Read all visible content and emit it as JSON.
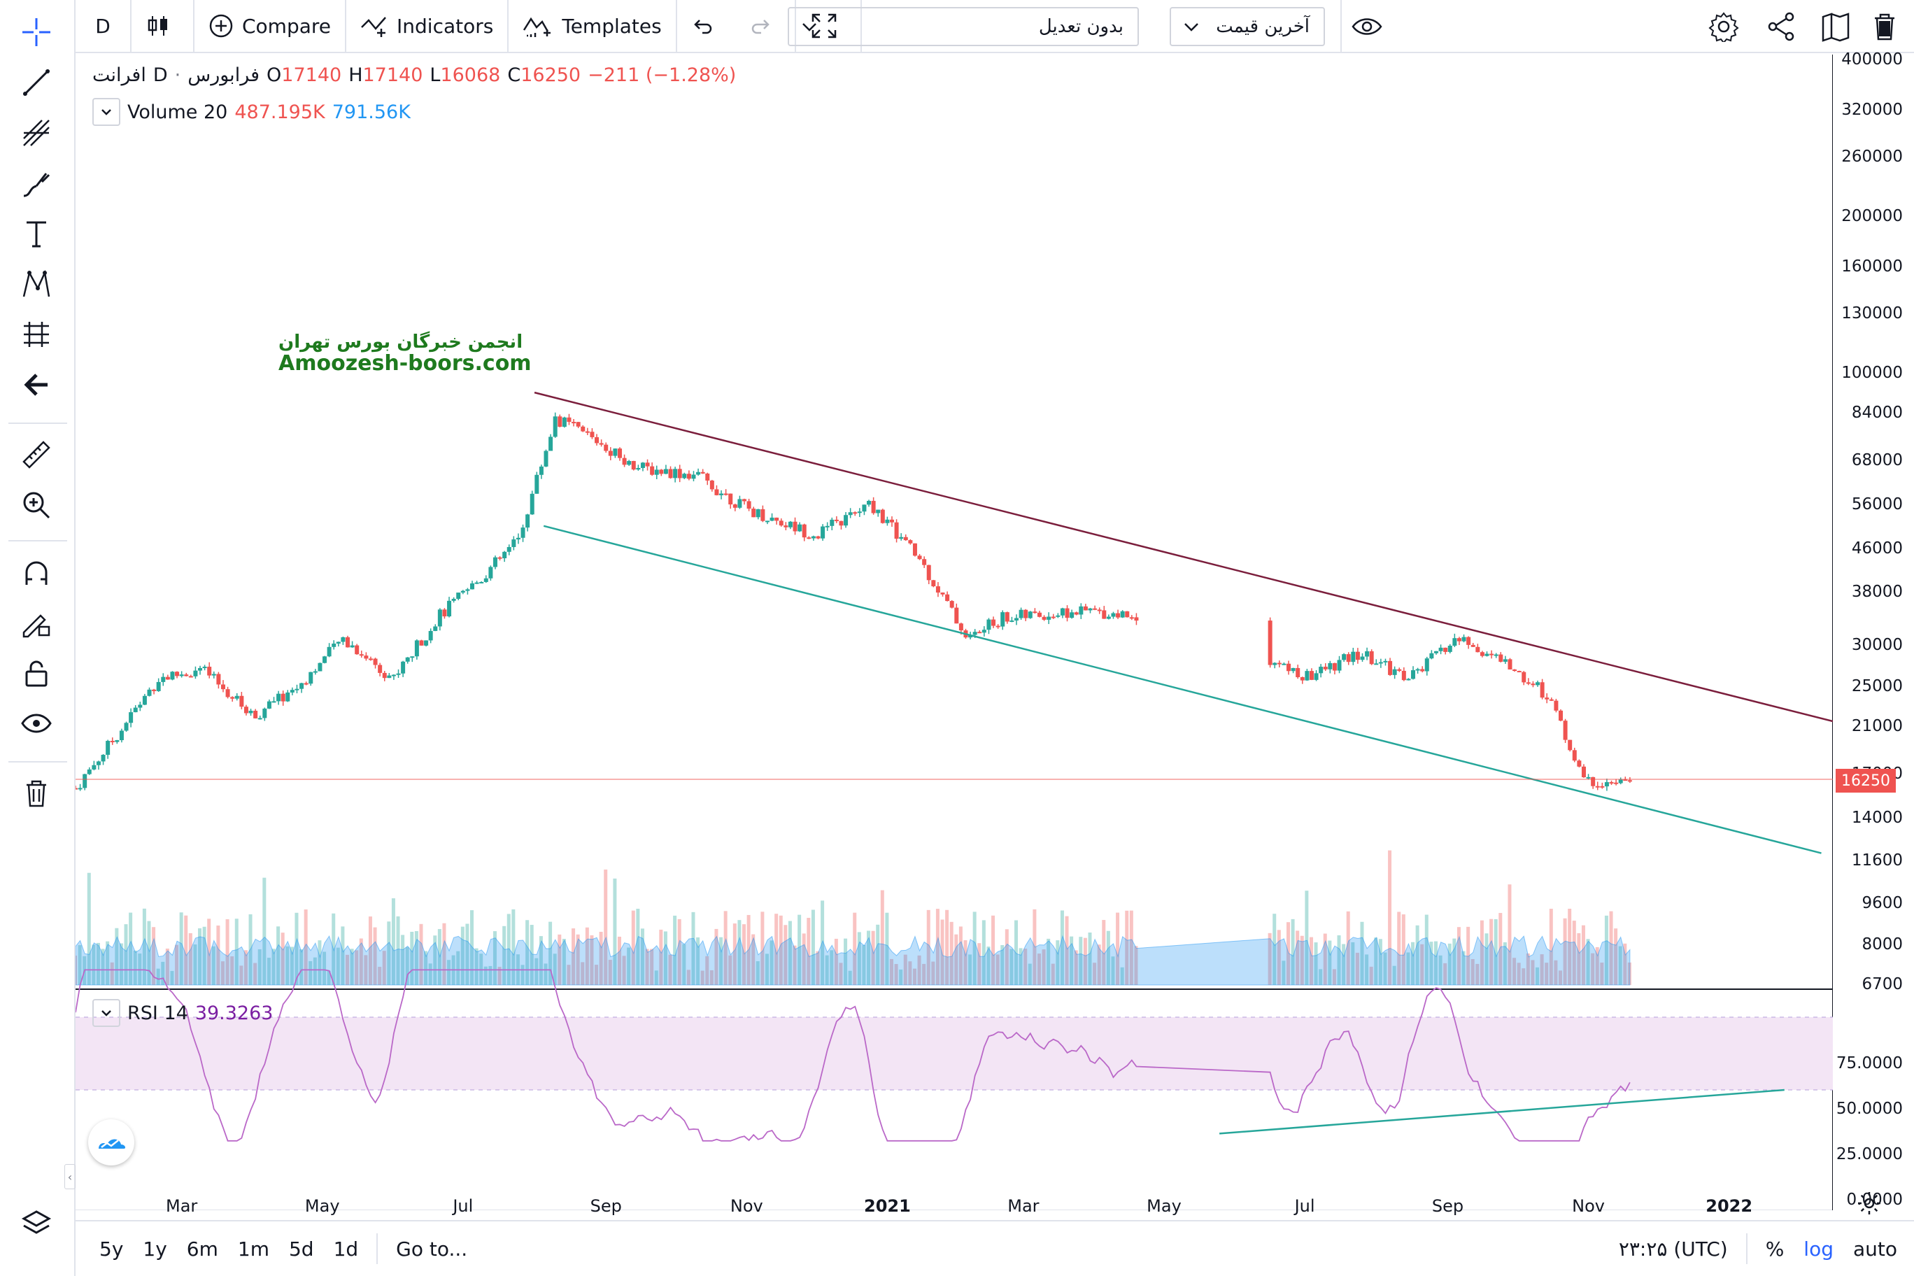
{
  "toolbar": {
    "interval": "D",
    "compare_label": "Compare",
    "indicators_label": "Indicators",
    "templates_label": "Templates",
    "adjustment_select": "بدون تعدیل",
    "price_type_select": "آخرین قیمت"
  },
  "legend": {
    "symbol": "افرانت",
    "interval": "D",
    "exchange": "فرابورس",
    "open_label": "O",
    "open": "17140",
    "high_label": "H",
    "high": "17140",
    "low_label": "L",
    "low": "16068",
    "close_label": "C",
    "close": "16250",
    "change": "−211 (−1.28%)",
    "volume_name": "Volume 20",
    "volume_value": "487.195K",
    "volume_ma": "791.56K",
    "rsi_name": "RSI 14",
    "rsi_value": "39.3263"
  },
  "watermark": {
    "persian": "انجمن خبرگان بورس تهران",
    "site": "Amoozesh-boors.com"
  },
  "price_axis": [
    "400000",
    "320000",
    "260000",
    "200000",
    "160000",
    "130000",
    "100000",
    "84000",
    "68000",
    "56000",
    "46000",
    "38000",
    "30000",
    "25000",
    "21000",
    "17000",
    "14000",
    "11600",
    "9600",
    "8000",
    "6700"
  ],
  "current_price": "16250",
  "rsi_axis": [
    "75.0000",
    "50.0000",
    "25.0000",
    "0.0000"
  ],
  "time_axis": [
    "Mar",
    "May",
    "Jul",
    "Sep",
    "Nov",
    "2021",
    "Mar",
    "May",
    "Jul",
    "Sep",
    "Nov",
    "2022"
  ],
  "bottom_bar": {
    "ranges": [
      "5y",
      "1y",
      "6m",
      "1m",
      "5d",
      "1d"
    ],
    "goto": "Go to...",
    "clock": "۲۳:۲۵ (UTC)",
    "percent": "%",
    "log": "log",
    "auto": "auto"
  },
  "chart_data": {
    "type": "candlestick",
    "scale": "log",
    "y_range": [
      6700,
      400000
    ],
    "x_range": [
      "2020-01-15",
      "2022-02-15"
    ],
    "close_approx": [
      [
        "2020-01-15",
        16000
      ],
      [
        "2020-02-01",
        20000
      ],
      [
        "2020-02-20",
        26000
      ],
      [
        "2020-03-10",
        27000
      ],
      [
        "2020-04-01",
        22000
      ],
      [
        "2020-04-20",
        25000
      ],
      [
        "2020-05-10",
        31000
      ],
      [
        "2020-06-01",
        26000
      ],
      [
        "2020-06-20",
        34000
      ],
      [
        "2020-07-10",
        41000
      ],
      [
        "2020-07-25",
        48000
      ],
      [
        "2020-08-10",
        82000
      ],
      [
        "2020-08-25",
        76000
      ],
      [
        "2020-09-15",
        66000
      ],
      [
        "2020-10-10",
        64000
      ],
      [
        "2020-11-01",
        55000
      ],
      [
        "2020-12-01",
        49000
      ],
      [
        "2020-12-25",
        56000
      ],
      [
        "2021-01-15",
        44000
      ],
      [
        "2021-02-05",
        31000
      ],
      [
        "2021-02-20",
        34000
      ],
      [
        "2021-04-01",
        35000
      ],
      [
        "2021-05-20",
        33000
      ],
      [
        "2021-07-01",
        26000
      ],
      [
        "2021-07-25",
        29000
      ],
      [
        "2021-08-15",
        26000
      ],
      [
        "2021-09-05",
        31000
      ],
      [
        "2021-09-25",
        28000
      ],
      [
        "2021-10-15",
        24000
      ],
      [
        "2021-10-30",
        16500
      ],
      [
        "2021-11-20",
        16250
      ]
    ],
    "trendlines": [
      {
        "color": "#7b1e3c",
        "from": [
          "2020-08-01",
          92000
        ],
        "to": [
          "2022-02-15",
          21500
        ]
      },
      {
        "color": "#26a69a",
        "from": [
          "2020-08-05",
          51000
        ],
        "to": [
          "2022-02-10",
          12000
        ]
      }
    ],
    "rsi": {
      "name": "RSI 14",
      "last": 39.3263,
      "band": [
        30,
        70
      ]
    }
  },
  "colors": {
    "up": "#26a69a",
    "down": "#ef5350",
    "rsi": "#9c27b0",
    "band": "#f3e5f5",
    "accent": "#2962ff"
  }
}
